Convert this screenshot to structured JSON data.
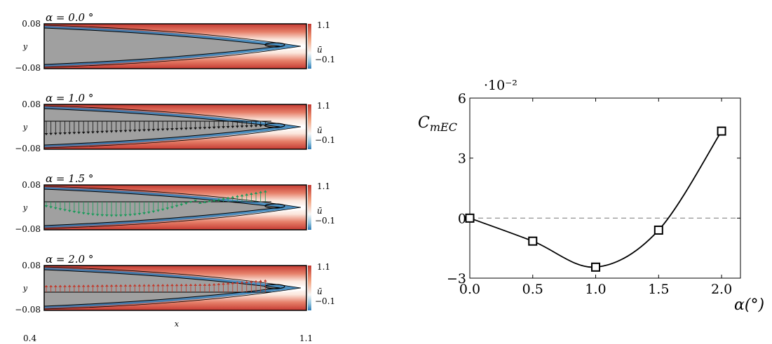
{
  "colormap": {
    "high": "#c53a32",
    "mid": "#f7f7f7",
    "low": "#2c7bb6",
    "body": "#a0a0a0"
  },
  "left_panels": {
    "ylabel": "y",
    "xlabel": "x",
    "colorbar_label": "ū",
    "colorbar_max": "1.1",
    "colorbar_min": "−0.1",
    "ytick_top": "0.08",
    "ytick_bottom": "−0.08",
    "xtick_left": "0.4",
    "xtick_right": "1.1",
    "panels": [
      {
        "title": "α = 0.0 °",
        "arrows": "none",
        "color": "#000000"
      },
      {
        "title": "α = 1.0 °",
        "arrows": "down",
        "color": "#111111"
      },
      {
        "title": "α = 1.5 °",
        "arrows": "mixed",
        "color": "#1a9a5a"
      },
      {
        "title": "α = 2.0 °",
        "arrows": "up",
        "color": "#c0392b"
      }
    ]
  },
  "chart_data": {
    "type": "line",
    "ylabel": "C_mEC",
    "xlabel": "α(°)",
    "y_multiplier": "·10⁻²",
    "x": [
      0.0,
      0.5,
      1.0,
      1.5,
      2.0
    ],
    "values": [
      0.0,
      -1.15,
      -2.45,
      -0.6,
      4.35
    ],
    "xlim": [
      0.0,
      2.15
    ],
    "ylim": [
      -3.0,
      6.0
    ],
    "xticks": [
      "0.0",
      "0.5",
      "1.0",
      "1.5",
      "2.0"
    ],
    "yticks": [
      "−3",
      "0",
      "3",
      "6"
    ],
    "marker": "square",
    "zero_line": "dashed"
  }
}
